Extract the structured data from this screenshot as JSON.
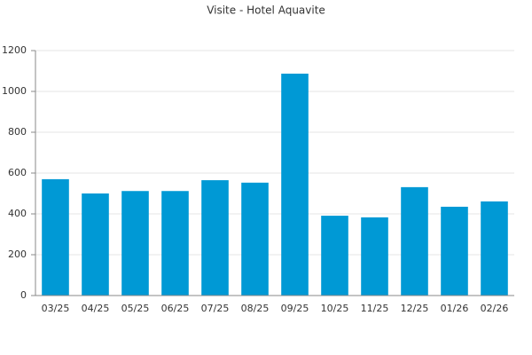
{
  "chart_data": {
    "type": "bar",
    "title": "Visite - Hotel Aquavite",
    "categories": [
      "03/25",
      "04/25",
      "05/25",
      "06/25",
      "07/25",
      "08/25",
      "09/25",
      "10/25",
      "11/25",
      "12/25",
      "01/26",
      "02/26"
    ],
    "values": [
      570,
      500,
      512,
      512,
      565,
      553,
      1087,
      391,
      383,
      531,
      435,
      461
    ],
    "color": "#0099d5",
    "ylim": [
      0,
      1200
    ],
    "yticks": [
      0,
      200,
      400,
      600,
      800,
      1000,
      1200
    ],
    "grid": true
  }
}
